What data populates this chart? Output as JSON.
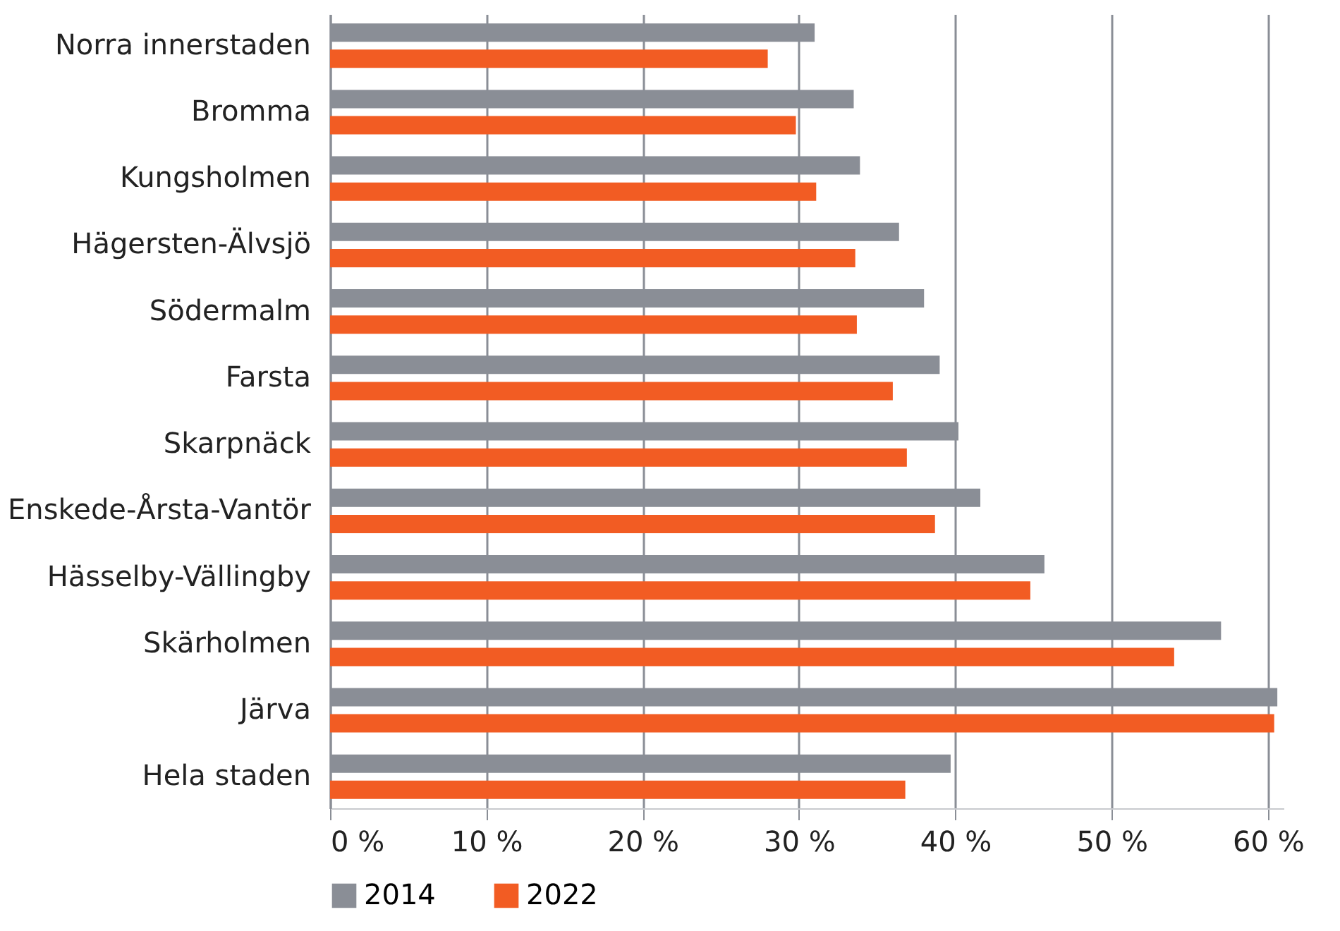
{
  "chart_data": {
    "type": "bar",
    "orientation": "horizontal",
    "categories": [
      "Norra innerstaden",
      "Bromma",
      "Kungsholmen",
      "Hägersten-Älvsjö",
      "Södermalm",
      "Farsta",
      "Skarpnäck",
      "Enskede-Årsta-Vantör",
      "Hässelby-Vällingby",
      "Skärholmen",
      "Järva",
      "Hela staden"
    ],
    "series": [
      {
        "name": "2014",
        "color": "#8a8e96",
        "values": [
          31.0,
          33.5,
          33.9,
          36.4,
          38.0,
          39.0,
          40.2,
          41.6,
          45.7,
          57.0,
          60.6,
          39.7
        ]
      },
      {
        "name": "2022",
        "color": "#f25c23",
        "values": [
          28.0,
          29.8,
          31.1,
          33.6,
          33.7,
          36.0,
          36.9,
          38.7,
          44.8,
          54.0,
          60.4,
          36.8
        ]
      }
    ],
    "xlim": [
      0,
      61
    ],
    "xticks": [
      {
        "value": 0,
        "label": "0 %"
      },
      {
        "value": 10,
        "label": "10 %"
      },
      {
        "value": 20,
        "label": "20 %"
      },
      {
        "value": 30,
        "label": "30 %"
      },
      {
        "value": 40,
        "label": "40 %"
      },
      {
        "value": 50,
        "label": "50 %"
      },
      {
        "value": 60,
        "label": "60 %"
      }
    ],
    "grid": "x",
    "legend": "bottom"
  }
}
